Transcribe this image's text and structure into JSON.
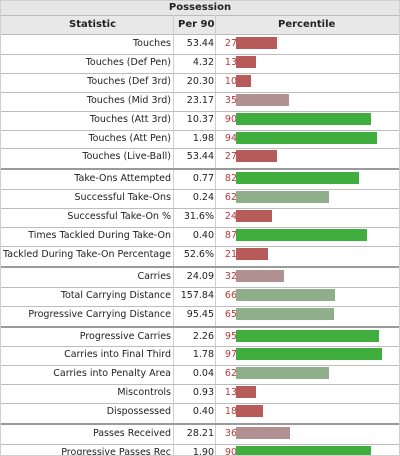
{
  "section_title": "Possession",
  "columns": {
    "statistic": "Statistic",
    "per90": "Per 90",
    "percentile": "Percentile"
  },
  "colors": {
    "low": "#b75a5a",
    "mid_low": "#b09090",
    "mid_high": "#8fae8a",
    "high": "#3fae3f",
    "pct_text": "#b83a3a"
  },
  "chart_data": {
    "type": "bar",
    "title": "Possession",
    "xlim": [
      0,
      100
    ],
    "groups": [
      [
        {
          "statistic": "Touches",
          "per90": "53.44",
          "percentile": 27
        },
        {
          "statistic": "Touches (Def Pen)",
          "per90": "4.32",
          "percentile": 13
        },
        {
          "statistic": "Touches (Def 3rd)",
          "per90": "20.30",
          "percentile": 10
        },
        {
          "statistic": "Touches (Mid 3rd)",
          "per90": "23.17",
          "percentile": 35
        },
        {
          "statistic": "Touches (Att 3rd)",
          "per90": "10.37",
          "percentile": 90
        },
        {
          "statistic": "Touches (Att Pen)",
          "per90": "1.98",
          "percentile": 94
        },
        {
          "statistic": "Touches (Live-Ball)",
          "per90": "53.44",
          "percentile": 27
        }
      ],
      [
        {
          "statistic": "Take-Ons Attempted",
          "per90": "0.77",
          "percentile": 82
        },
        {
          "statistic": "Successful Take-Ons",
          "per90": "0.24",
          "percentile": 62
        },
        {
          "statistic": "Successful Take-On %",
          "per90": "31.6%",
          "percentile": 24
        },
        {
          "statistic": "Times Tackled During Take-On",
          "per90": "0.40",
          "percentile": 87
        },
        {
          "statistic": "Tackled During Take-On Percentage",
          "per90": "52.6%",
          "percentile": 21
        }
      ],
      [
        {
          "statistic": "Carries",
          "per90": "24.09",
          "percentile": 32
        },
        {
          "statistic": "Total Carrying Distance",
          "per90": "157.84",
          "percentile": 66
        },
        {
          "statistic": "Progressive Carrying Distance",
          "per90": "95.45",
          "percentile": 65
        }
      ],
      [
        {
          "statistic": "Progressive Carries",
          "per90": "2.26",
          "percentile": 95
        },
        {
          "statistic": "Carries into Final Third",
          "per90": "1.78",
          "percentile": 97
        },
        {
          "statistic": "Carries into Penalty Area",
          "per90": "0.04",
          "percentile": 62
        },
        {
          "statistic": "Miscontrols",
          "per90": "0.93",
          "percentile": 13
        },
        {
          "statistic": "Dispossessed",
          "per90": "0.40",
          "percentile": 18
        }
      ],
      [
        {
          "statistic": "Passes Received",
          "per90": "28.21",
          "percentile": 36
        },
        {
          "statistic": "Progressive Passes Rec",
          "per90": "1.90",
          "percentile": 90
        }
      ]
    ]
  }
}
